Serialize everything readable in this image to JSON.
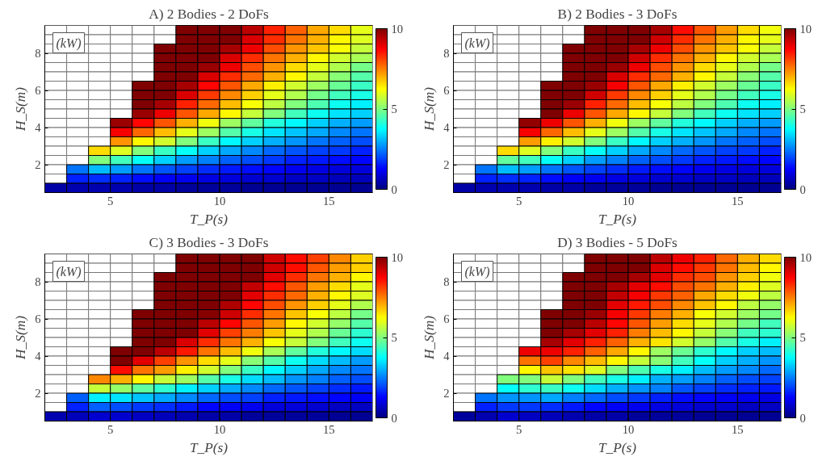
{
  "chart_data": [
    {
      "type": "heatmap",
      "title": "A) 2 Bodies - 2 DoFs",
      "xlabel": "T_P(s)",
      "ylabel": "H_S(m)",
      "x": [
        2.5,
        3.5,
        4.5,
        5.5,
        6.5,
        7.5,
        8.5,
        9.5,
        10.5,
        11.5,
        12.5,
        13.5,
        14.5,
        15.5,
        16.5
      ],
      "y": [
        9.25,
        8.75,
        8.25,
        7.75,
        7.25,
        6.75,
        6.25,
        5.75,
        5.25,
        4.75,
        4.25,
        3.75,
        3.25,
        2.75,
        2.25,
        1.75,
        1.25,
        0.75
      ],
      "xlim": [
        2,
        17
      ],
      "ylim": [
        0.5,
        9.5
      ],
      "xticks": [
        5,
        10,
        15
      ],
      "yticks": [
        2,
        4,
        6,
        8
      ],
      "clim": [
        0,
        10
      ],
      "cticks": [
        0,
        5,
        10
      ],
      "legend_title": "(kW)",
      "cells": [
        [
          null,
          null,
          null,
          null,
          null,
          null,
          10,
          10,
          10,
          9.4,
          8.4,
          7.8,
          7.1,
          6.6,
          6.0
        ],
        [
          null,
          null,
          null,
          null,
          null,
          null,
          10,
          10,
          10,
          9.1,
          8.3,
          7.6,
          7.0,
          6.3,
          5.9
        ],
        [
          null,
          null,
          null,
          null,
          null,
          10,
          10,
          10,
          9.6,
          8.9,
          8.0,
          7.3,
          6.8,
          6.2,
          5.7
        ],
        [
          null,
          null,
          null,
          null,
          null,
          10,
          10,
          10,
          9.1,
          8.3,
          7.6,
          7.0,
          6.3,
          5.8,
          5.4
        ],
        [
          null,
          null,
          null,
          null,
          null,
          10,
          10,
          9.7,
          8.9,
          8.0,
          7.3,
          6.6,
          6.0,
          5.5,
          4.9
        ],
        [
          null,
          null,
          null,
          null,
          null,
          10,
          10,
          9.1,
          8.3,
          7.7,
          7.0,
          6.3,
          5.7,
          5.1,
          4.6
        ],
        [
          null,
          null,
          null,
          null,
          10,
          10,
          9.6,
          8.7,
          7.9,
          7.1,
          6.4,
          5.8,
          5.3,
          4.8,
          4.3
        ],
        [
          null,
          null,
          null,
          null,
          10,
          10,
          9.1,
          8.2,
          7.4,
          6.7,
          6.0,
          5.5,
          4.9,
          4.4,
          4.0
        ],
        [
          null,
          null,
          null,
          null,
          10,
          9.6,
          8.4,
          7.7,
          6.9,
          6.2,
          5.6,
          5.0,
          4.5,
          3.9,
          3.6
        ],
        [
          null,
          null,
          null,
          null,
          9.7,
          8.9,
          7.9,
          7.1,
          6.3,
          5.7,
          5.0,
          4.4,
          3.9,
          3.5,
          3.3
        ],
        [
          null,
          null,
          null,
          9.7,
          8.7,
          7.9,
          7.0,
          6.1,
          5.3,
          4.7,
          4.1,
          3.7,
          3.3,
          3.0,
          2.8
        ],
        [
          null,
          null,
          null,
          8.8,
          7.7,
          6.9,
          6.0,
          5.3,
          4.6,
          4.0,
          3.5,
          3.2,
          2.9,
          2.6,
          2.4
        ],
        [
          null,
          null,
          null,
          7.3,
          6.3,
          5.8,
          5.0,
          4.3,
          3.7,
          3.3,
          3.0,
          2.7,
          2.4,
          2.2,
          2.0
        ],
        [
          null,
          null,
          6.6,
          5.9,
          5.0,
          4.3,
          3.8,
          3.3,
          2.9,
          2.6,
          2.3,
          2.1,
          1.9,
          1.8,
          1.6
        ],
        [
          null,
          null,
          5.0,
          4.4,
          3.8,
          3.3,
          2.8,
          2.5,
          2.2,
          2.0,
          1.8,
          1.6,
          1.5,
          1.4,
          1.3
        ],
        [
          null,
          2.4,
          3.1,
          2.8,
          2.4,
          2.1,
          1.9,
          1.7,
          1.5,
          1.4,
          1.3,
          1.1,
          1.0,
          0.9,
          0.9
        ],
        [
          null,
          1.6,
          1.7,
          1.6,
          1.4,
          1.2,
          1.1,
          1.0,
          0.9,
          0.8,
          0.8,
          0.7,
          0.7,
          0.6,
          0.6
        ],
        [
          0.4,
          0.5,
          0.5,
          0.5,
          0.4,
          0.4,
          0.3,
          0.3,
          0.3,
          0.2,
          0.2,
          0.2,
          0.2,
          0.2,
          0.2
        ]
      ]
    },
    {
      "type": "heatmap",
      "title": "B) 2 Bodies - 3 DoFs",
      "xlabel": "T_P(s)",
      "ylabel": "H_S(m)",
      "x": [
        2.5,
        3.5,
        4.5,
        5.5,
        6.5,
        7.5,
        8.5,
        9.5,
        10.5,
        11.5,
        12.5,
        13.5,
        14.5,
        15.5,
        16.5
      ],
      "y": [
        9.25,
        8.75,
        8.25,
        7.75,
        7.25,
        6.75,
        6.25,
        5.75,
        5.25,
        4.75,
        4.25,
        3.75,
        3.25,
        2.75,
        2.25,
        1.75,
        1.25,
        0.75
      ],
      "xlim": [
        2,
        17
      ],
      "ylim": [
        0.5,
        9.5
      ],
      "xticks": [
        5,
        10,
        15
      ],
      "yticks": [
        2,
        4,
        6,
        8
      ],
      "clim": [
        0,
        10
      ],
      "cticks": [
        0,
        5,
        10
      ],
      "legend_title": "(kW)",
      "cells": [
        [
          null,
          null,
          null,
          null,
          null,
          null,
          10,
          10,
          10,
          9.6,
          8.6,
          7.9,
          7.2,
          6.6,
          6.1
        ],
        [
          null,
          null,
          null,
          null,
          null,
          null,
          10,
          10,
          10,
          9.2,
          8.3,
          7.6,
          7.0,
          6.3,
          6.0
        ],
        [
          null,
          null,
          null,
          null,
          null,
          10,
          10,
          10,
          9.6,
          8.9,
          8.0,
          7.3,
          6.8,
          6.2,
          5.7
        ],
        [
          null,
          null,
          null,
          null,
          null,
          10,
          10,
          10,
          9.2,
          8.3,
          7.6,
          7.0,
          6.3,
          5.8,
          5.4
        ],
        [
          null,
          null,
          null,
          null,
          null,
          10,
          10,
          9.7,
          8.9,
          8.0,
          7.3,
          6.6,
          6.0,
          5.5,
          4.9
        ],
        [
          null,
          null,
          null,
          null,
          null,
          10,
          10,
          9.1,
          8.3,
          7.7,
          7.0,
          6.3,
          5.7,
          5.1,
          4.6
        ],
        [
          null,
          null,
          null,
          null,
          10,
          10,
          9.7,
          8.8,
          7.9,
          7.1,
          6.4,
          5.8,
          5.3,
          4.8,
          4.3
        ],
        [
          null,
          null,
          null,
          null,
          10,
          10,
          9.2,
          8.2,
          7.4,
          6.7,
          6.0,
          5.5,
          4.9,
          4.4,
          4.0
        ],
        [
          null,
          null,
          null,
          null,
          10,
          9.7,
          8.4,
          7.7,
          6.9,
          6.2,
          5.6,
          5.0,
          4.5,
          3.9,
          3.6
        ],
        [
          null,
          null,
          null,
          null,
          10,
          8.9,
          7.9,
          7.1,
          6.3,
          5.7,
          5.0,
          4.4,
          3.9,
          3.5,
          3.3
        ],
        [
          null,
          null,
          null,
          9.8,
          8.9,
          7.9,
          7.0,
          6.1,
          5.3,
          4.7,
          4.1,
          3.7,
          3.3,
          3.0,
          2.8
        ],
        [
          null,
          null,
          null,
          8.8,
          7.7,
          6.9,
          6.0,
          5.3,
          4.6,
          4.0,
          3.5,
          3.2,
          2.9,
          2.6,
          2.4
        ],
        [
          null,
          null,
          null,
          7.2,
          6.4,
          5.8,
          5.0,
          4.3,
          3.7,
          3.3,
          3.0,
          2.7,
          2.4,
          2.2,
          2.0
        ],
        [
          null,
          null,
          6.6,
          5.9,
          5.0,
          4.3,
          3.8,
          3.3,
          2.9,
          2.6,
          2.3,
          2.1,
          1.9,
          1.8,
          1.6
        ],
        [
          null,
          null,
          4.7,
          4.4,
          3.8,
          3.3,
          2.8,
          2.5,
          2.2,
          2.0,
          1.8,
          1.6,
          1.5,
          1.4,
          1.3
        ],
        [
          null,
          2.4,
          3.1,
          2.8,
          2.4,
          2.1,
          1.9,
          1.7,
          1.5,
          1.4,
          1.3,
          1.1,
          1.0,
          0.9,
          0.9
        ],
        [
          null,
          1.6,
          1.7,
          1.6,
          1.4,
          1.2,
          1.1,
          1.0,
          0.9,
          0.8,
          0.8,
          0.7,
          0.7,
          0.6,
          0.6
        ],
        [
          0.4,
          0.5,
          0.5,
          0.5,
          0.4,
          0.4,
          0.3,
          0.3,
          0.3,
          0.2,
          0.2,
          0.2,
          0.2,
          0.2,
          0.2
        ]
      ]
    },
    {
      "type": "heatmap",
      "title": "C) 3 Bodies - 3 DoFs",
      "xlabel": "T_P(s)",
      "ylabel": "H_S(m)",
      "x": [
        2.5,
        3.5,
        4.5,
        5.5,
        6.5,
        7.5,
        8.5,
        9.5,
        10.5,
        11.5,
        12.5,
        13.5,
        14.5,
        15.5,
        16.5
      ],
      "y": [
        9.25,
        8.75,
        8.25,
        7.75,
        7.25,
        6.75,
        6.25,
        5.75,
        5.25,
        4.75,
        4.25,
        3.75,
        3.25,
        2.75,
        2.25,
        1.75,
        1.25,
        0.75
      ],
      "xlim": [
        2,
        17
      ],
      "ylim": [
        0.5,
        9.5
      ],
      "xticks": [
        5,
        10,
        15
      ],
      "yticks": [
        2,
        4,
        6,
        8
      ],
      "clim": [
        0,
        10
      ],
      "cticks": [
        0,
        5,
        10
      ],
      "legend_title": "(kW)",
      "cells": [
        [
          null,
          null,
          null,
          null,
          null,
          null,
          10,
          10,
          10,
          10,
          9.2,
          8.6,
          8.1,
          7.4,
          6.7
        ],
        [
          null,
          null,
          null,
          null,
          null,
          null,
          10,
          10,
          10,
          10,
          9.2,
          8.6,
          7.9,
          7.2,
          6.7
        ],
        [
          null,
          null,
          null,
          null,
          null,
          10,
          10,
          10,
          10,
          10,
          9.0,
          8.3,
          7.6,
          7.0,
          6.3
        ],
        [
          null,
          null,
          null,
          null,
          null,
          10,
          10,
          10,
          10,
          9.3,
          8.6,
          7.9,
          7.2,
          6.6,
          6.0
        ],
        [
          null,
          null,
          null,
          null,
          null,
          10,
          10,
          10,
          10,
          9.0,
          8.3,
          7.7,
          7.0,
          6.3,
          5.9
        ],
        [
          null,
          null,
          null,
          null,
          null,
          10,
          10,
          10,
          9.5,
          8.7,
          8.0,
          7.3,
          6.7,
          6.0,
          5.5
        ],
        [
          null,
          null,
          null,
          null,
          10,
          10,
          10,
          9.9,
          9.2,
          8.3,
          7.6,
          6.8,
          6.2,
          5.6,
          4.9
        ],
        [
          null,
          null,
          null,
          null,
          10,
          10,
          10,
          9.4,
          8.7,
          7.9,
          7.2,
          6.3,
          5.8,
          5.2,
          4.6
        ],
        [
          null,
          null,
          null,
          null,
          10,
          10,
          10,
          9.0,
          8.1,
          7.5,
          6.8,
          6.0,
          5.5,
          4.8,
          4.2
        ],
        [
          null,
          null,
          null,
          null,
          10,
          10,
          9.1,
          8.3,
          7.6,
          7.0,
          6.2,
          5.7,
          5.0,
          4.4,
          3.9
        ],
        [
          null,
          null,
          null,
          10,
          10,
          9.4,
          8.5,
          7.6,
          6.9,
          6.1,
          5.4,
          4.7,
          4.1,
          3.7,
          3.4
        ],
        [
          null,
          null,
          null,
          10,
          9.0,
          8.1,
          7.3,
          6.6,
          6.0,
          5.1,
          4.6,
          3.9,
          3.4,
          3.1,
          2.8
        ],
        [
          null,
          null,
          null,
          8.6,
          7.6,
          7.2,
          6.4,
          5.8,
          5.0,
          4.3,
          3.7,
          3.3,
          2.9,
          2.6,
          2.4
        ],
        [
          null,
          null,
          7.4,
          7.0,
          6.3,
          5.7,
          5.3,
          4.6,
          4.0,
          3.4,
          3.1,
          2.7,
          2.5,
          2.2,
          2.0
        ],
        [
          null,
          null,
          5.7,
          5.2,
          4.7,
          4.2,
          3.6,
          3.3,
          2.9,
          2.6,
          2.3,
          2.1,
          1.9,
          1.7,
          1.5
        ],
        [
          null,
          2.2,
          3.6,
          3.5,
          3.2,
          2.9,
          2.6,
          2.3,
          2.0,
          1.9,
          1.6,
          1.5,
          1.4,
          1.3,
          1.2
        ],
        [
          null,
          1.6,
          2.2,
          2.0,
          1.8,
          1.7,
          1.5,
          1.3,
          1.2,
          1.1,
          0.9,
          0.9,
          0.8,
          0.7,
          0.7
        ],
        [
          0.5,
          0.6,
          0.8,
          0.8,
          0.7,
          0.6,
          0.5,
          0.4,
          0.4,
          0.3,
          0.3,
          0.3,
          0.3,
          0.2,
          0.2
        ]
      ]
    },
    {
      "type": "heatmap",
      "title": "D) 3 Bodies - 5 DoFs",
      "xlabel": "T_P(s)",
      "ylabel": "H_S(m)",
      "x": [
        2.5,
        3.5,
        4.5,
        5.5,
        6.5,
        7.5,
        8.5,
        9.5,
        10.5,
        11.5,
        12.5,
        13.5,
        14.5,
        15.5,
        16.5
      ],
      "y": [
        9.25,
        8.75,
        8.25,
        7.75,
        7.25,
        6.75,
        6.25,
        5.75,
        5.25,
        4.75,
        4.25,
        3.75,
        3.25,
        2.75,
        2.25,
        1.75,
        1.25,
        0.75
      ],
      "xlim": [
        2,
        17
      ],
      "ylim": [
        0.5,
        9.5
      ],
      "xticks": [
        5,
        10,
        15
      ],
      "yticks": [
        2,
        4,
        6,
        8
      ],
      "clim": [
        0,
        10
      ],
      "cticks": [
        0,
        5,
        10
      ],
      "legend_title": "(kW)",
      "cells": [
        [
          null,
          null,
          null,
          null,
          null,
          null,
          10,
          10,
          10,
          9.4,
          8.9,
          8.4,
          7.7,
          7.0,
          6.6
        ],
        [
          null,
          null,
          null,
          null,
          null,
          null,
          10,
          10,
          10,
          9.1,
          8.6,
          8.2,
          7.6,
          6.9,
          6.3
        ],
        [
          null,
          null,
          null,
          null,
          null,
          10,
          10,
          10,
          9.6,
          9.0,
          8.3,
          8.0,
          7.3,
          6.7,
          6.1
        ],
        [
          null,
          null,
          null,
          null,
          null,
          10,
          10,
          9.6,
          9.0,
          8.6,
          8.0,
          7.6,
          7.0,
          6.4,
          5.9
        ],
        [
          null,
          null,
          null,
          null,
          null,
          10,
          10,
          9.3,
          8.8,
          8.2,
          7.8,
          7.1,
          6.6,
          6.1,
          5.6
        ],
        [
          null,
          null,
          null,
          null,
          null,
          10,
          10,
          9.0,
          8.5,
          8.0,
          7.4,
          6.8,
          6.3,
          5.6,
          5.2
        ],
        [
          null,
          null,
          null,
          null,
          10,
          10,
          9.7,
          8.8,
          8.2,
          7.5,
          7.0,
          6.2,
          5.8,
          5.3,
          4.9
        ],
        [
          null,
          null,
          null,
          null,
          10,
          10,
          9.4,
          8.7,
          7.9,
          7.2,
          6.6,
          6.0,
          5.5,
          4.9,
          4.4
        ],
        [
          null,
          null,
          null,
          null,
          10,
          9.6,
          9.0,
          8.4,
          7.5,
          6.9,
          6.3,
          5.7,
          5.1,
          4.4,
          4.2
        ],
        [
          null,
          null,
          null,
          null,
          9.6,
          9.0,
          8.4,
          7.8,
          7.0,
          6.5,
          5.8,
          5.2,
          4.6,
          4.0,
          3.6
        ],
        [
          null,
          null,
          null,
          8.9,
          8.9,
          8.4,
          7.8,
          7.1,
          6.3,
          5.3,
          4.8,
          4.2,
          3.7,
          3.3,
          3.1
        ],
        [
          null,
          null,
          null,
          7.6,
          8.1,
          7.4,
          6.9,
          6.3,
          5.7,
          5.1,
          4.4,
          3.8,
          3.3,
          3.0,
          2.7
        ],
        [
          null,
          null,
          null,
          6.3,
          6.8,
          6.5,
          5.9,
          5.0,
          4.5,
          4.0,
          3.6,
          3.1,
          2.8,
          2.6,
          2.3
        ],
        [
          null,
          null,
          5.0,
          5.0,
          5.7,
          5.0,
          4.4,
          4.0,
          3.6,
          3.0,
          2.8,
          2.5,
          2.2,
          2.0,
          1.9
        ],
        [
          null,
          null,
          3.8,
          4.2,
          4.3,
          3.9,
          3.4,
          3.0,
          2.7,
          2.5,
          2.1,
          1.9,
          1.7,
          1.6,
          1.5
        ],
        [
          null,
          2.4,
          2.7,
          2.7,
          2.9,
          2.5,
          2.3,
          2.0,
          1.8,
          1.6,
          1.4,
          1.3,
          1.2,
          1.1,
          1.0
        ],
        [
          null,
          1.6,
          1.8,
          1.8,
          1.7,
          1.5,
          1.3,
          1.2,
          1.1,
          1.0,
          0.9,
          0.8,
          0.8,
          0.7,
          0.7
        ],
        [
          0.3,
          0.5,
          0.8,
          0.7,
          0.6,
          0.5,
          0.4,
          0.4,
          0.3,
          0.3,
          0.3,
          0.2,
          0.2,
          0.2,
          0.2
        ]
      ]
    }
  ]
}
